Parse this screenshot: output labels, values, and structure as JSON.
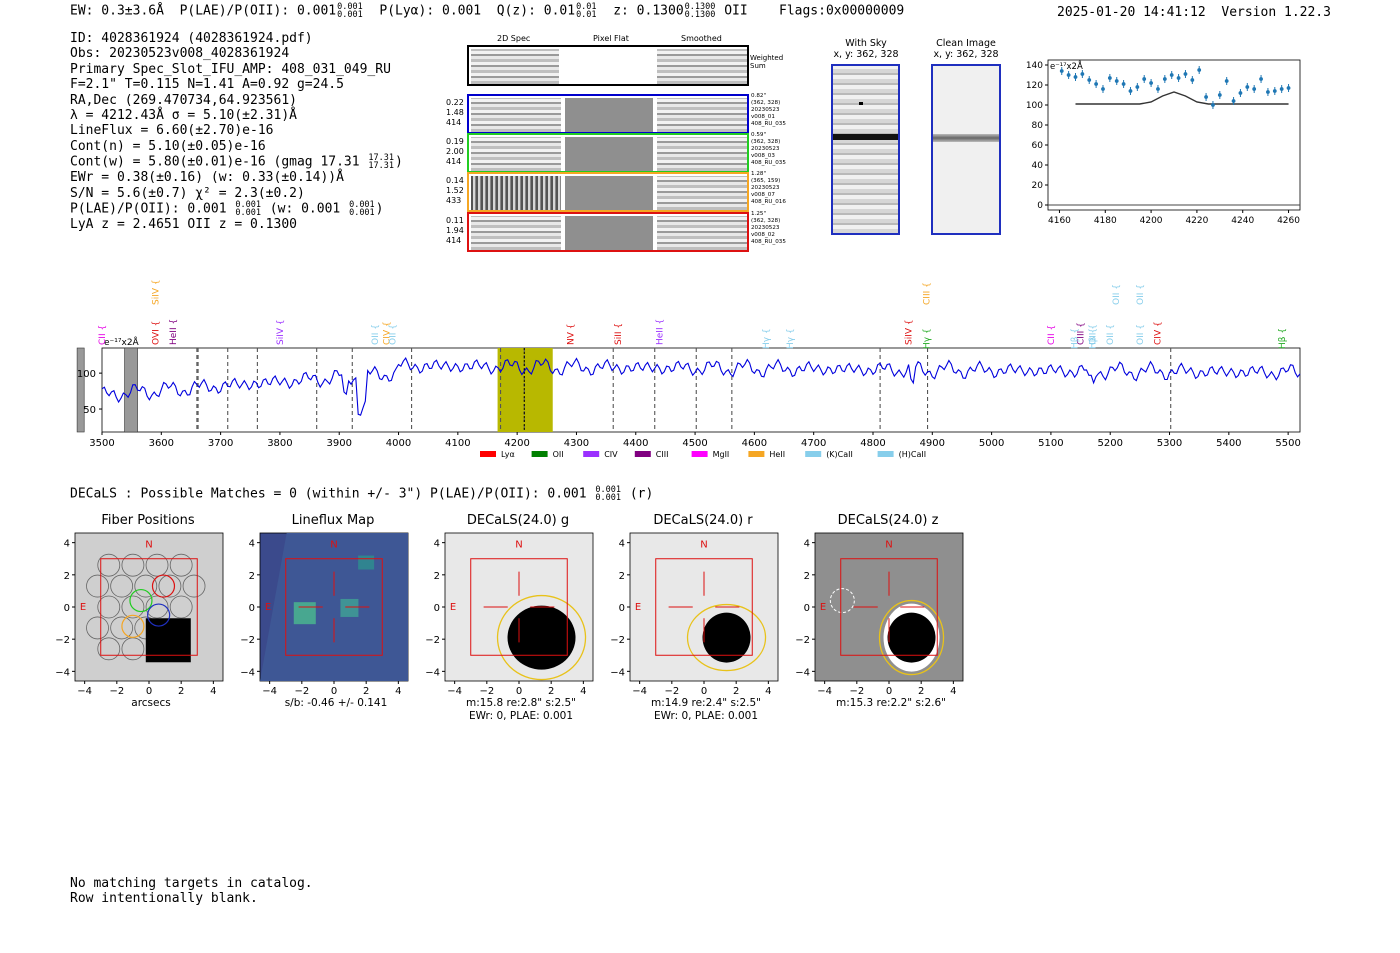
{
  "header": {
    "ew": "EW: 0.3±3.6Å",
    "plae_label": "P(LAE)/P(OII): 0.001",
    "plae_hi": "0.001",
    "plae_lo": "0.001",
    "plya": "P(Lyα): 0.001",
    "qz_label": "Q(z): 0.01",
    "qz_hi": "0.01",
    "qz_lo": "0.01",
    "z_label": "z: 0.1300",
    "z_hi": "0.1300",
    "z_lo": "0.1300",
    "z_line": "OII",
    "flags": "Flags:0x00000009",
    "timestamp": "2025-01-20 14:41:12",
    "version": "Version 1.22.3"
  },
  "info": {
    "id": "ID: 4028361924 (4028361924.pdf)",
    "obs": "Obs: 20230523v008_4028361924",
    "primary": "Primary Spec_Slot_IFU_AMP: 408_031_049_RU",
    "fit": "F=2.1\"  T=0.115  N=1.41  A=0.92  g=24.5",
    "radec": "RA,Dec (269.470734,64.923561)",
    "lambda": "λ = 4212.43Å   σ = 5.10(±2.31)Å",
    "lineflux": "LineFlux = 6.60(±2.70)e-16",
    "cont_n": "Cont(n) = 5.10(±0.05)e-16",
    "cont_w": "Cont(w) = 5.80(±0.01)e-16 (gmag 17.31",
    "cont_w_hi": "17.31",
    "cont_w_lo": "17.31",
    "cont_w_end": ")",
    "ewr": "EWr = 0.38(±0.16) (w: 0.33(±0.14))Å",
    "sn": "S/N = 5.6(±0.7)  χ² = 2.3(±0.2)",
    "plae": "P(LAE)/P(OII): 0.001",
    "plae_hi": "0.001",
    "plae_lo": "0.001",
    "plae_w": "(w: 0.001",
    "plae_w_hi": "0.001",
    "plae_w_lo": "0.001",
    "plae_end": ")",
    "lya": "LyA z = 2.4651  OII z = 0.1300"
  },
  "cutouts": {
    "col_2d": "2D Spec",
    "col_flat": "Pixel Flat",
    "col_smooth": "Smoothed",
    "weighted": "Weighted\nSum",
    "fibers": [
      {
        "v1": "0.22",
        "v2": "1.48",
        "v3": "414",
        "meta": "0.82\"\n(362, 328)\n20230523\nv008_01\n408_RU_035",
        "color": "#0000cc"
      },
      {
        "v1": "0.19",
        "v2": "2.00",
        "v3": "414",
        "meta": "0.59\"\n(362, 328)\n20230523\nv008_03\n408_RU_035",
        "color": "#22cc22"
      },
      {
        "v1": "0.14",
        "v2": "1.52",
        "v3": "433",
        "meta": "1.28\"\n(365, 159)\n20230523\nv008_07\n408_RU_016",
        "color": "#f5a623"
      },
      {
        "v1": "0.11",
        "v2": "1.94",
        "v3": "414",
        "meta": "1.25\"\n(362, 328)\n20230523\nv008_02\n408_RU_035",
        "color": "#dd1111"
      }
    ],
    "with_sky_title": "With Sky",
    "with_sky_xy": "x, y: 362, 328",
    "clean_title": "Clean Image",
    "clean_xy": "x, y: 362, 328"
  },
  "zoom_chart": {
    "type": "scatter",
    "unit_label": "e⁻¹⁷x2Å",
    "xlim": [
      4155,
      4265
    ],
    "ylim": [
      -5,
      145
    ],
    "xticks": [
      4160,
      4180,
      4200,
      4220,
      4240,
      4260
    ],
    "yticks": [
      0,
      20,
      40,
      60,
      80,
      100,
      120,
      140
    ],
    "x": [
      4161,
      4164,
      4167,
      4170,
      4173,
      4176,
      4179,
      4182,
      4185,
      4188,
      4191,
      4194,
      4197,
      4200,
      4203,
      4206,
      4209,
      4212,
      4215,
      4218,
      4221,
      4224,
      4227,
      4230,
      4233,
      4236,
      4239,
      4242,
      4245,
      4248,
      4251,
      4254,
      4257,
      4260
    ],
    "y": [
      134,
      130,
      128,
      131,
      125,
      121,
      116,
      127,
      124,
      121,
      114,
      118,
      126,
      122,
      116,
      126,
      130,
      127,
      131,
      125,
      135,
      108,
      100,
      110,
      124,
      104,
      112,
      118,
      116,
      126,
      113,
      114,
      116,
      117
    ],
    "fit_x": [
      4167,
      4195,
      4200,
      4205,
      4210,
      4215,
      4220,
      4225,
      4230,
      4260
    ],
    "fit_y": [
      101,
      101,
      103,
      109,
      113,
      109,
      103,
      101,
      101,
      101
    ]
  },
  "spectrum": {
    "unit_label": "e⁻¹⁷x2Å",
    "xlim": [
      3500,
      5520
    ],
    "ylim": [
      18,
      135
    ],
    "xticks": [
      3500,
      3600,
      3700,
      3800,
      3900,
      4000,
      4100,
      4200,
      4300,
      4400,
      4500,
      4600,
      4700,
      4800,
      4900,
      5000,
      5100,
      5200,
      5300,
      5400,
      5500
    ],
    "yticks": [
      50,
      100
    ],
    "highlight": [
      4167,
      4260
    ],
    "dashed": [
      3660,
      3662,
      3712,
      3762,
      3862,
      3922,
      4022,
      4172,
      4212,
      4362,
      4432,
      4502,
      4562,
      4812,
      4892,
      5302
    ],
    "hatched": [
      [
        3538,
        3560
      ],
      [
        3458,
        3470
      ]
    ],
    "lines_top": [
      {
        "label": "SiIV",
        "x": 3590,
        "color": "#f5a623",
        "row": 0
      },
      {
        "label": "CIII",
        "x": 4890,
        "color": "#f5a623",
        "row": 0
      },
      {
        "label": "OII",
        "x": 5210,
        "color": "#87ceeb",
        "row": 0
      },
      {
        "label": "OII",
        "x": 5250,
        "color": "#87ceeb",
        "row": 0
      }
    ],
    "lines_mid": [
      {
        "label": "CII",
        "x": 3500,
        "color": "#e600e6"
      },
      {
        "label": "OVI",
        "x": 3590,
        "color": "#dd1111"
      },
      {
        "label": "HeII",
        "x": 3620,
        "color": "#800080"
      },
      {
        "label": "SiIV",
        "x": 3800,
        "color": "#9b30ff"
      },
      {
        "label": "OII",
        "x": 3960,
        "color": "#87ceeb"
      },
      {
        "label": "CIV",
        "x": 3980,
        "color": "#f5a623"
      },
      {
        "label": "OII",
        "x": 3990,
        "color": "#87ceeb"
      },
      {
        "label": "NV",
        "x": 4290,
        "color": "#dd1111"
      },
      {
        "label": "SiII",
        "x": 4370,
        "color": "#dd1111"
      },
      {
        "label": "HeII",
        "x": 4440,
        "color": "#9b30ff"
      },
      {
        "label": "SiIV",
        "x": 4860,
        "color": "#dd1111"
      },
      {
        "label": "CII",
        "x": 5100,
        "color": "#e600e6"
      },
      {
        "label": "CIII",
        "x": 5150,
        "color": "#800080"
      },
      {
        "label": "OII",
        "x": 5170,
        "color": "#87ceeb"
      },
      {
        "label": "OII",
        "x": 5200,
        "color": "#87ceeb"
      },
      {
        "label": "OII",
        "x": 5250,
        "color": "#87ceeb"
      },
      {
        "label": "CIV",
        "x": 5280,
        "color": "#dd1111"
      }
    ],
    "lines_low": [
      {
        "label": "Hγ",
        "x": 4620,
        "color": "#87ceeb"
      },
      {
        "label": "Hγ",
        "x": 4660,
        "color": "#87ceeb"
      },
      {
        "label": "Hγ",
        "x": 4890,
        "color": "#22aa22"
      },
      {
        "label": "Hβ",
        "x": 5140,
        "color": "#87ceeb"
      },
      {
        "label": "Hβ",
        "x": 5170,
        "color": "#87ceeb"
      },
      {
        "label": "Hβ",
        "x": 5490,
        "color": "#22aa22"
      }
    ],
    "legend": [
      {
        "label": "Lyα",
        "color": "#ff0000"
      },
      {
        "label": "OII",
        "color": "#008000"
      },
      {
        "label": "CIV",
        "color": "#9b30ff"
      },
      {
        "label": "CIII",
        "color": "#800080"
      },
      {
        "label": "MgII",
        "color": "#ff00ff"
      },
      {
        "label": "HeII",
        "color": "#f5a623"
      },
      {
        "label": "(K)CaII",
        "color": "#87ceeb"
      },
      {
        "label": "(H)CaII",
        "color": "#87ceeb"
      }
    ]
  },
  "decals": {
    "line": "DECaLS : Possible Matches = 0 (within +/- 3\")  P(LAE)/P(OII): 0.001",
    "hi": "0.001",
    "lo": "0.001",
    "band": "(r)",
    "panels": [
      {
        "title": "Fiber Positions",
        "caption": "arcsecs",
        "caption2": ""
      },
      {
        "title": "Lineflux Map",
        "caption": "s/b: -0.46 +/- 0.141",
        "caption2": ""
      },
      {
        "title": "DECaLS(24.0) g",
        "caption": "m:15.8  re:2.8\"  s:2.5\"",
        "caption2": "EWr: 0, PLAE: 0.001"
      },
      {
        "title": "DECaLS(24.0) r",
        "caption": "m:14.9  re:2.4\"  s:2.5\"",
        "caption2": "EWr: 0, PLAE: 0.001"
      },
      {
        "title": "DECaLS(24.0) z",
        "caption": "m:15.3  re:2.2\"  s:2.6\"",
        "caption2": ""
      }
    ],
    "axis_ticks": [
      "−4",
      "−2",
      "0",
      "2",
      "4"
    ],
    "compass_n": "N",
    "compass_e": "E"
  },
  "footer": {
    "line1": "No matching targets in catalog.",
    "line2": "Row intentionally blank."
  }
}
